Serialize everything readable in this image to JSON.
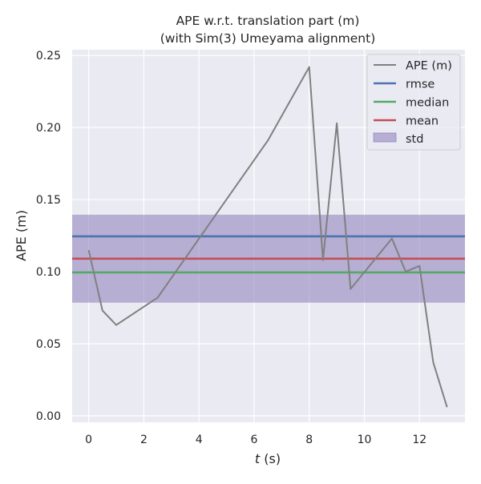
{
  "chart_data": {
    "type": "line",
    "title_line1": "APE w.r.t. translation part (m)",
    "title_line2": "(with Sim(3) Umeyama alignment)",
    "xlabel_var": "t",
    "xlabel_unit": " (s)",
    "ylabel": "APE (m)",
    "xlim": [
      -0.6,
      13.65
    ],
    "ylim": [
      -0.0045,
      0.254
    ],
    "xticks": [
      0,
      2,
      4,
      6,
      8,
      10,
      12
    ],
    "xtick_labels": [
      "0",
      "2",
      "4",
      "6",
      "8",
      "10",
      "12"
    ],
    "yticks": [
      0.0,
      0.05,
      0.1,
      0.15,
      0.2,
      0.25
    ],
    "ytick_labels": [
      "0.00",
      "0.05",
      "0.10",
      "0.15",
      "0.20",
      "0.25"
    ],
    "grid": true,
    "legend_position": "top-right",
    "series": [
      {
        "name": "APE (m)",
        "color": "#808080",
        "x": [
          0.0,
          0.5,
          1.0,
          2.5,
          6.5,
          8.0,
          8.5,
          9.0,
          9.5,
          11.0,
          11.5,
          12.0,
          12.5,
          13.0
        ],
        "y": [
          0.115,
          0.073,
          0.063,
          0.082,
          0.191,
          0.242,
          0.108,
          0.203,
          0.088,
          0.123,
          0.1,
          0.104,
          0.037,
          0.006
        ]
      }
    ],
    "stats": {
      "rmse": {
        "name": "rmse",
        "value": 0.1245,
        "color": "#4C72B0"
      },
      "median": {
        "name": "median",
        "value": 0.0995,
        "color": "#55A868"
      },
      "mean": {
        "name": "mean",
        "value": 0.109,
        "color": "#C44E52"
      },
      "std": {
        "name": "std",
        "lower": 0.0785,
        "upper": 0.1395,
        "color": "#8172B3"
      }
    },
    "colors": {
      "plot_background": "#EAEAF2",
      "grid": "#FFFFFF",
      "text": "#262626"
    }
  }
}
